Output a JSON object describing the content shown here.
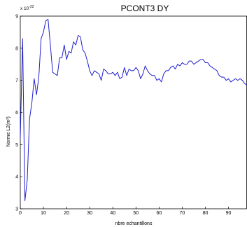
{
  "chart_data": {
    "type": "line",
    "title": "PCONT3   DY",
    "xlabel": "nbre echantillons",
    "ylabel": "Norme L2(m²)",
    "y_exponent_label": "x 10",
    "y_exponent_power": "-22",
    "xlim": [
      0,
      98
    ],
    "ylim": [
      3,
      9
    ],
    "xticks": [
      0,
      10,
      20,
      30,
      40,
      50,
      60,
      70,
      80,
      90
    ],
    "yticks": [
      3,
      4,
      5,
      6,
      7,
      8,
      9
    ],
    "grid": false,
    "line_color": "#2020d0",
    "series": [
      {
        "x": [
          0,
          1,
          2,
          3,
          4,
          5,
          6,
          7,
          8,
          9,
          10,
          11,
          12,
          13,
          14,
          15,
          16,
          17,
          18,
          19,
          20,
          21,
          22,
          23,
          24,
          25,
          26,
          27,
          28,
          29,
          30,
          31,
          32,
          33,
          34,
          35,
          36,
          37,
          38,
          39,
          40,
          41,
          42,
          43,
          44,
          45,
          46,
          47,
          48,
          49,
          50,
          51,
          52,
          53,
          54,
          55,
          56,
          57,
          58,
          59,
          60,
          61,
          62,
          63,
          64,
          65,
          66,
          67,
          68,
          69,
          70,
          71,
          72,
          73,
          74,
          75,
          76,
          77,
          78,
          79,
          80,
          81,
          82,
          83,
          84,
          85,
          86,
          87,
          88,
          89,
          90,
          91,
          92,
          93,
          94,
          95,
          96,
          97,
          98
        ],
        "y": [
          5.2,
          8.3,
          3.25,
          3.9,
          5.8,
          6.3,
          7.05,
          6.55,
          7.1,
          8.3,
          8.5,
          8.85,
          8.9,
          8.1,
          7.25,
          7.2,
          7.15,
          7.7,
          7.7,
          8.1,
          7.65,
          7.9,
          7.85,
          8.2,
          8.1,
          8.4,
          8.35,
          7.95,
          7.85,
          7.6,
          7.3,
          7.15,
          7.3,
          7.25,
          7.2,
          7.0,
          7.35,
          7.3,
          7.2,
          7.2,
          7.25,
          7.15,
          7.25,
          7.05,
          7.1,
          7.4,
          7.15,
          7.35,
          7.3,
          7.3,
          7.4,
          7.3,
          7.05,
          7.2,
          7.45,
          7.3,
          7.2,
          7.15,
          7.15,
          7.0,
          7.05,
          6.95,
          7.2,
          7.3,
          7.3,
          7.4,
          7.45,
          7.35,
          7.5,
          7.45,
          7.55,
          7.5,
          7.5,
          7.6,
          7.6,
          7.5,
          7.55,
          7.6,
          7.65,
          7.65,
          7.55,
          7.55,
          7.45,
          7.4,
          7.35,
          7.3,
          7.15,
          7.1,
          7.1,
          7.0,
          7.05,
          6.95,
          7.0,
          7.05,
          7.0,
          7.05,
          7.0,
          6.9,
          6.85
        ]
      }
    ]
  }
}
